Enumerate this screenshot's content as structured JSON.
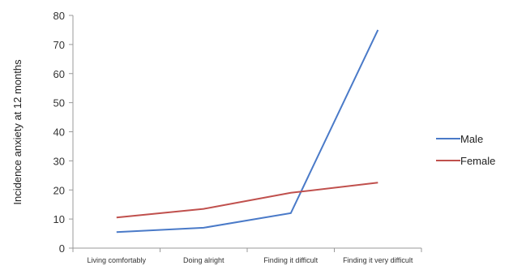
{
  "chart_data": {
    "type": "line",
    "categories": [
      "Living comfortably",
      "Doing alright",
      "Finding it difficult",
      "Finding it very difficult"
    ],
    "series": [
      {
        "name": "Male",
        "values": [
          5.5,
          7,
          12,
          75
        ],
        "color": "#4a7ac8"
      },
      {
        "name": "Female",
        "values": [
          10.5,
          13.5,
          19,
          22.5
        ],
        "color": "#c0504d"
      }
    ],
    "ylabel": "Incidence anxiety at 12 months",
    "xlabel": "",
    "ylim": [
      0,
      80
    ],
    "yticks": [
      0,
      10,
      20,
      30,
      40,
      50,
      60,
      70,
      80
    ],
    "grid": false,
    "legend_position": "right"
  }
}
